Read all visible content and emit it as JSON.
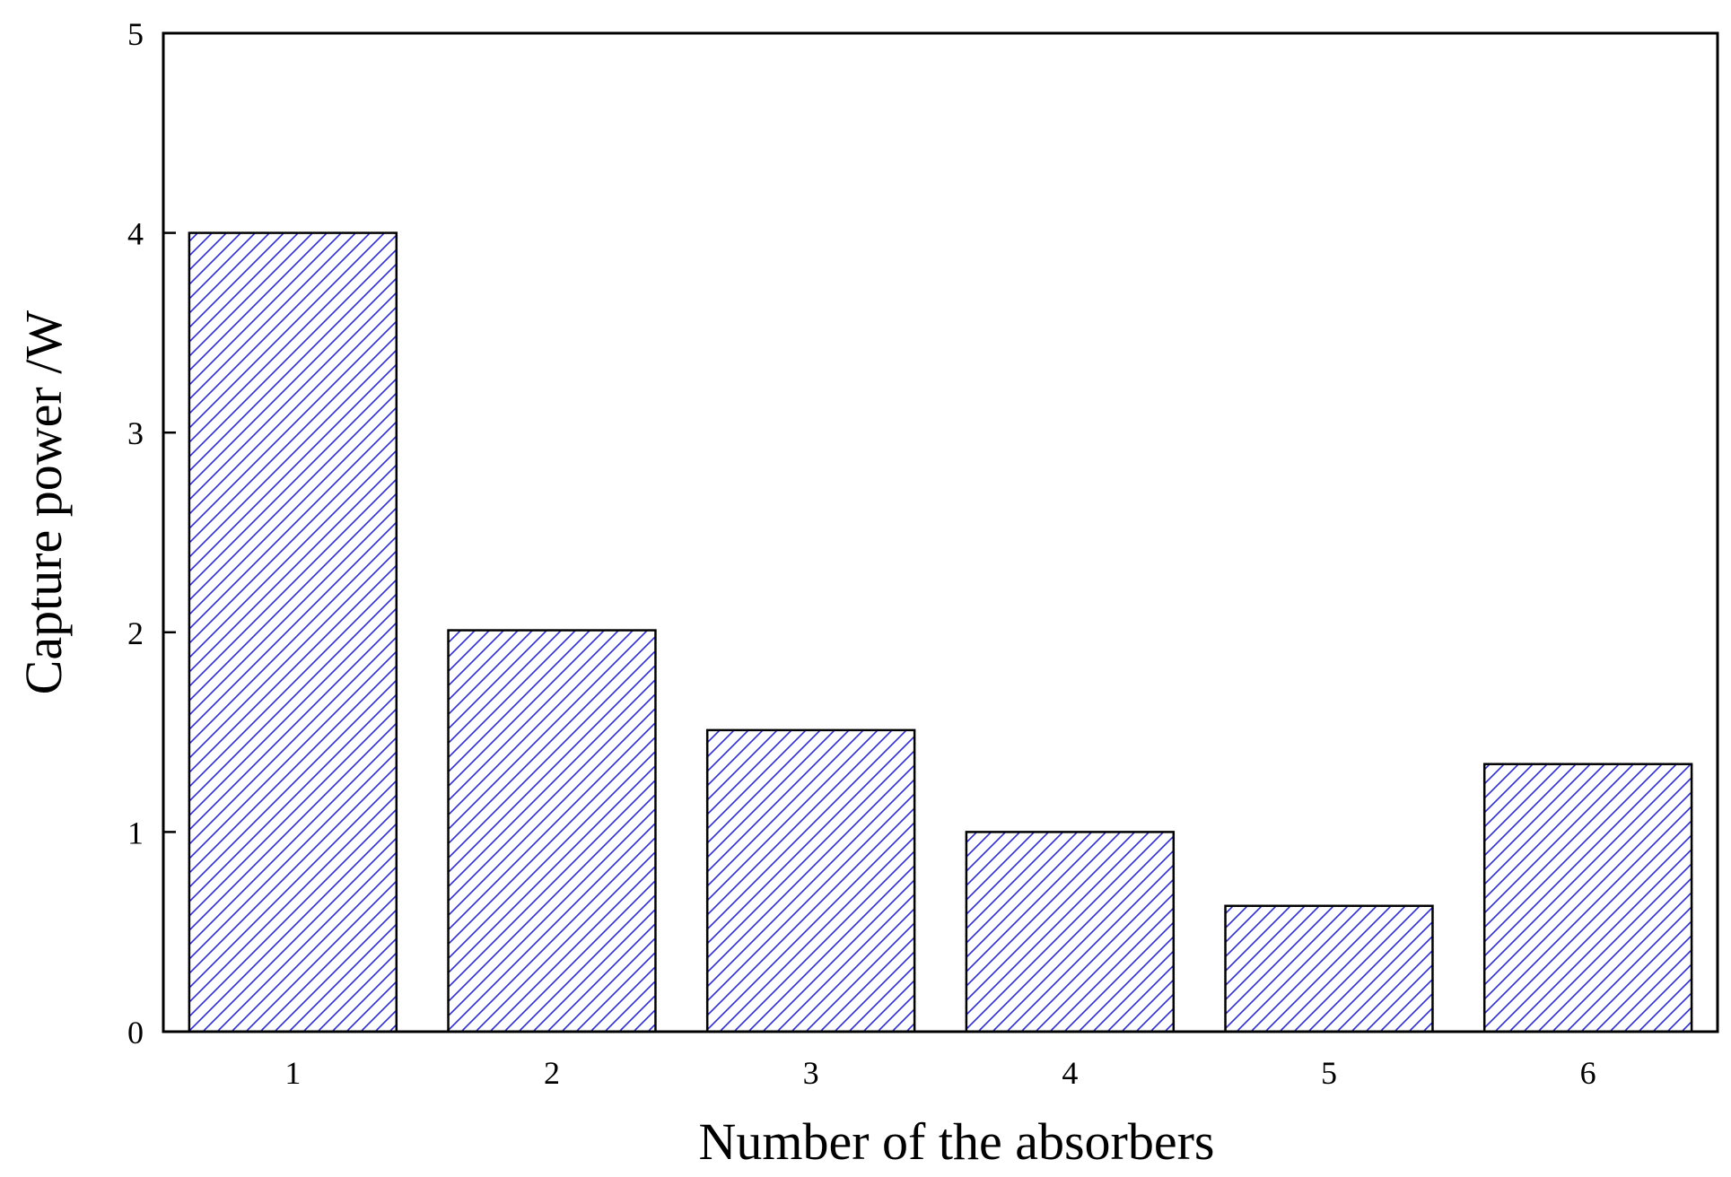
{
  "chart_data": {
    "type": "bar",
    "title": "",
    "xlabel": "Number of the absorbers",
    "ylabel": "Capture power /W",
    "categories": [
      "1",
      "2",
      "3",
      "4",
      "5",
      "6"
    ],
    "values": [
      4.0,
      2.01,
      1.51,
      1.0,
      0.63,
      1.34
    ],
    "ylim": [
      0,
      5
    ],
    "yticks": [
      "0",
      "1",
      "2",
      "3",
      "4",
      "5"
    ],
    "grid": false,
    "legend": "none",
    "bar_pattern": "diagonal-hatch",
    "colors": {
      "hatch": "#2b2bd6",
      "bar_edge": "#000000",
      "axis": "#000000"
    }
  }
}
